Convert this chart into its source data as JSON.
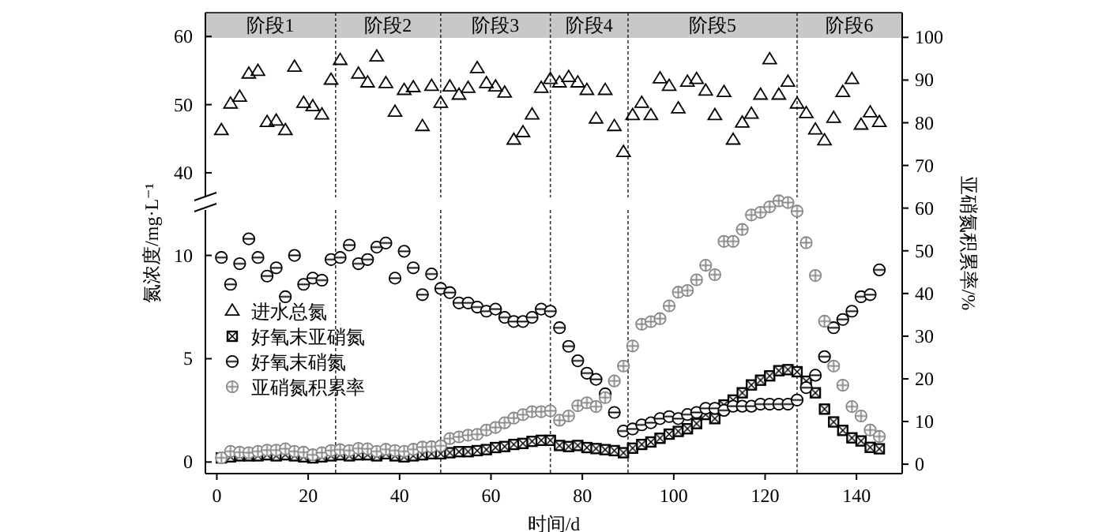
{
  "chart_data": [
    {
      "type": "scatter",
      "x": [
        1,
        3,
        5,
        7,
        9,
        11,
        13,
        15,
        17,
        19,
        21,
        23,
        25,
        27,
        29,
        31,
        33,
        35,
        37,
        39,
        41,
        43,
        45,
        47,
        49,
        51,
        53,
        55,
        57,
        59,
        61,
        63,
        65,
        67,
        69,
        71,
        73,
        75,
        77,
        79,
        81,
        83,
        85,
        87,
        89,
        91,
        93,
        95,
        97,
        99,
        101,
        103,
        105,
        107,
        109,
        111,
        113,
        115,
        117,
        119,
        121,
        123,
        125,
        127,
        129,
        131,
        133,
        135,
        137,
        139,
        141,
        143,
        145
      ],
      "xlim": [
        -2.5,
        150
      ],
      "ylim": [
        36.4,
        63.5
      ],
      "yticks": [
        40,
        50,
        60
      ],
      "tick_labels": "y",
      "grid": false,
      "series": [
        {
          "name": "进水总氮",
          "color": "#000000",
          "marker": "triangle",
          "values": [
            46.2,
            50.1,
            51.1,
            54.5,
            54.9,
            47.4,
            47.6,
            46.2,
            55.5,
            50.2,
            49.7,
            48.5,
            53.6,
            56.5,
            null,
            54.5,
            53.2,
            57.0,
            53.1,
            48.9,
            52.1,
            52.5,
            46.8,
            52.7,
            50.2,
            52.6,
            51.4,
            52.4,
            55.3,
            53.1,
            52.6,
            51.7,
            44.8,
            45.9,
            48.5,
            52.4,
            53.7,
            53.2,
            54.0,
            53.2,
            52.1,
            47.9,
            52.1,
            46.8,
            43.0,
            48.4,
            50.2,
            48.4,
            53.8,
            52.7,
            49.4,
            53.3,
            53.7,
            52.0,
            48.4,
            51.8,
            44.8,
            47.3,
            48.6,
            51.4,
            56.6,
            51.4,
            53.3,
            50.1,
            48.7,
            46.3,
            44.7,
            48.0,
            51.8,
            53.7,
            47.0,
            48.8,
            47.4
          ]
        }
      ],
      "bands": [
        {
          "axis": "x",
          "from": -2.5,
          "to": 26,
          "label": "阶段1",
          "color": "#c8c8c8"
        },
        {
          "axis": "x",
          "from": 26,
          "to": 49,
          "label": "阶段2",
          "color": "#c8c8c8"
        },
        {
          "axis": "x",
          "from": 49,
          "to": 73,
          "label": "阶段3",
          "color": "#c8c8c8"
        },
        {
          "axis": "x",
          "from": 73,
          "to": 90,
          "label": "阶段4",
          "color": "#c8c8c8"
        },
        {
          "axis": "x",
          "from": 90,
          "to": 127,
          "label": "阶段5",
          "color": "#c8c8c8"
        },
        {
          "axis": "x",
          "from": 127,
          "to": 150,
          "label": "阶段6",
          "color": "#c8c8c8"
        }
      ]
    },
    {
      "type": "scatter",
      "x": [
        1,
        3,
        5,
        7,
        9,
        11,
        13,
        15,
        17,
        19,
        21,
        23,
        25,
        27,
        29,
        31,
        33,
        35,
        37,
        39,
        41,
        43,
        45,
        47,
        49,
        51,
        53,
        55,
        57,
        59,
        61,
        63,
        65,
        67,
        69,
        71,
        73,
        75,
        77,
        79,
        81,
        83,
        85,
        87,
        89,
        91,
        93,
        95,
        97,
        99,
        101,
        103,
        105,
        107,
        109,
        111,
        113,
        115,
        117,
        119,
        121,
        123,
        125,
        127,
        129,
        131,
        133,
        135,
        137,
        139,
        141,
        143,
        145
      ],
      "xlim": [
        -2.5,
        150
      ],
      "xticks": [
        0,
        20,
        40,
        60,
        80,
        100,
        120,
        140
      ],
      "ylim": [
        -0.56,
        12.2
      ],
      "yticks": [
        0,
        5,
        10
      ],
      "y2lim": [
        -2.2,
        105.8
      ],
      "y2ticks": [
        0,
        10,
        20,
        30,
        40,
        50,
        60,
        70,
        80,
        90,
        100
      ],
      "xlabel": "时间/d",
      "ylabel": "氮浓度/mg·L⁻¹",
      "y2label": "亚硝氮积累率/%",
      "legend": "left",
      "grid": false,
      "series": [
        {
          "name": "好氧末亚硝氮",
          "color": "#000000",
          "marker": "square",
          "values": [
            0.2,
            0.25,
            0.3,
            0.3,
            0.3,
            0.35,
            0.3,
            0.35,
            0.3,
            0.25,
            0.2,
            0.25,
            0.3,
            0.35,
            0.3,
            0.35,
            0.35,
            0.3,
            0.4,
            0.3,
            0.25,
            0.3,
            0.35,
            0.4,
            0.4,
            0.45,
            0.5,
            0.5,
            0.55,
            0.6,
            0.7,
            0.75,
            0.85,
            0.9,
            1.0,
            1.05,
            1.05,
            0.8,
            0.75,
            0.8,
            0.7,
            0.65,
            0.6,
            0.55,
            0.45,
            0.67,
            0.85,
            0.97,
            1.15,
            1.35,
            1.48,
            1.61,
            1.86,
            2.3,
            2.1,
            2.76,
            3.0,
            3.35,
            3.73,
            3.96,
            4.17,
            4.42,
            4.47,
            4.37,
            3.91,
            3.35,
            2.56,
            1.94,
            1.53,
            1.17,
            1.02,
            0.71,
            0.64
          ]
        },
        {
          "name": "好氧末硝氮",
          "color": "#000000",
          "marker": "circle",
          "values": [
            9.9,
            8.6,
            9.6,
            10.8,
            9.9,
            9.0,
            9.4,
            8.0,
            10.0,
            8.6,
            8.9,
            8.8,
            9.8,
            9.9,
            10.5,
            9.6,
            9.8,
            10.4,
            10.6,
            8.9,
            10.2,
            9.4,
            8.1,
            9.1,
            8.4,
            8.2,
            7.7,
            7.7,
            7.5,
            7.3,
            7.4,
            7.0,
            6.8,
            6.8,
            7.0,
            7.4,
            7.3,
            6.5,
            5.6,
            4.9,
            4.3,
            4.0,
            3.3,
            2.4,
            1.5,
            1.6,
            1.8,
            1.9,
            2.1,
            2.2,
            2.1,
            2.3,
            2.4,
            2.6,
            2.6,
            2.5,
            2.7,
            2.7,
            2.7,
            2.8,
            2.8,
            2.8,
            2.8,
            3.0,
            3.6,
            4.2,
            5.1,
            6.5,
            6.9,
            7.3,
            8.0,
            8.1,
            9.3
          ]
        },
        {
          "name": "亚硝氮积累率",
          "color": "#888888",
          "marker": "circle",
          "axis": "y2",
          "values": [
            1.5,
            3.0,
            2.8,
            2.7,
            3.0,
            3.3,
            3.3,
            3.6,
            3.0,
            2.8,
            2.2,
            2.7,
            3.2,
            3.4,
            3.2,
            3.7,
            3.6,
            3.0,
            3.5,
            3.2,
            3.0,
            3.5,
            4.0,
            4.1,
            4.3,
            6.0,
            6.4,
            6.8,
            7.0,
            8.0,
            8.6,
            9.7,
            10.8,
            11.6,
            12.3,
            12.3,
            12.5,
            10.3,
            11.3,
            13.7,
            14.4,
            13.5,
            15.6,
            19.5,
            23.0,
            27.7,
            32.8,
            33.4,
            34.1,
            37.1,
            40.3,
            40.7,
            43.2,
            46.6,
            44.4,
            52.2,
            52.2,
            55.0,
            58.4,
            59.0,
            60.3,
            61.7,
            61.3,
            59.3,
            51.9,
            44.2,
            33.5,
            23.0,
            18.5,
            13.5,
            11.3,
            8.0,
            6.5
          ]
        }
      ],
      "ref_lines": [
        {
          "axis": "x",
          "value": 26,
          "line_style": "dashed"
        },
        {
          "axis": "x",
          "value": 49,
          "line_style": "dashed"
        },
        {
          "axis": "x",
          "value": 73,
          "line_style": "dashed"
        },
        {
          "axis": "x",
          "value": 90,
          "line_style": "dashed"
        },
        {
          "axis": "x",
          "value": 127,
          "line_style": "dashed"
        }
      ]
    }
  ]
}
